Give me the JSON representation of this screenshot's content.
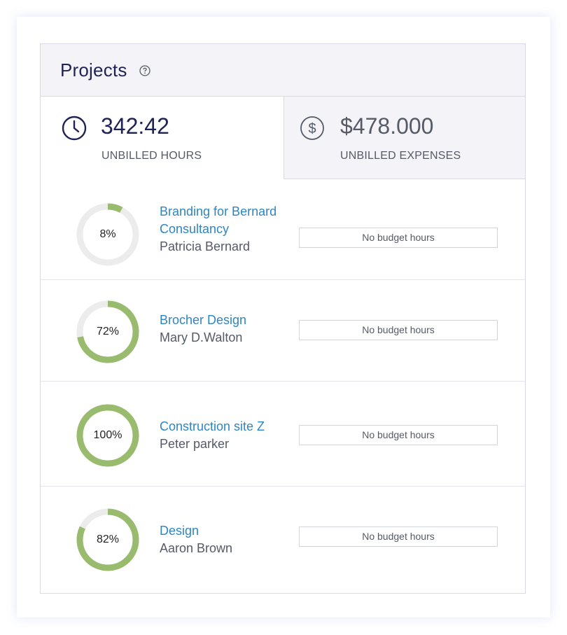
{
  "header": {
    "title": "Projects",
    "help_icon": "question-circle-icon"
  },
  "tabs": {
    "hours": {
      "icon": "clock-icon",
      "value": "342:42",
      "label": "UNBILLED HOURS"
    },
    "expenses": {
      "icon": "dollar-circle-icon",
      "value": "$478.000",
      "label": "UNBILLED EXPENSES"
    }
  },
  "colors": {
    "accent_text": "#1f2257",
    "link": "#2f85c4",
    "progress": "#99bb6e",
    "track": "#ececec"
  },
  "projects": [
    {
      "name": "Branding for Bernard Consultancy",
      "client": "Patricia Bernard",
      "percent": 8,
      "percent_label": "8%",
      "budget": "No budget hours"
    },
    {
      "name": "Brocher Design",
      "client": "Mary D.Walton",
      "percent": 72,
      "percent_label": "72%",
      "budget": "No budget hours"
    },
    {
      "name": "Construction site Z",
      "client": "Peter parker",
      "percent": 100,
      "percent_label": "100%",
      "budget": "No budget hours"
    },
    {
      "name": "Design",
      "client": "Aaron Brown",
      "percent": 82,
      "percent_label": "82%",
      "budget": "No budget hours"
    }
  ]
}
